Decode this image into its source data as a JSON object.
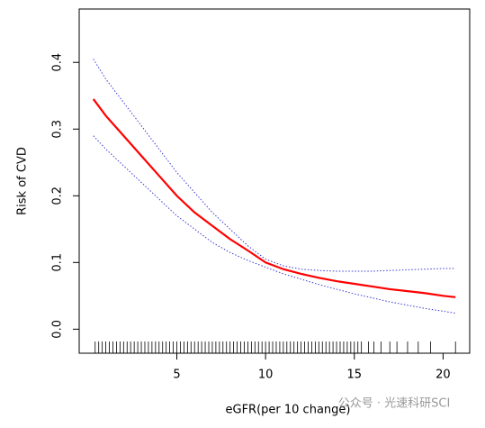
{
  "chart_data": {
    "type": "line",
    "xlabel": "eGFR(per 10 change)",
    "ylabel": "Risk of CVD",
    "x": [
      0.3,
      1,
      2,
      3,
      4,
      5,
      6,
      7,
      8,
      9,
      10,
      11,
      12,
      13,
      14,
      15,
      16,
      17,
      18,
      19,
      20,
      20.7
    ],
    "series": [
      {
        "name": "Risk",
        "color": "#ff0000",
        "style": "solid",
        "values": [
          0.345,
          0.32,
          0.29,
          0.26,
          0.23,
          0.2,
          0.175,
          0.155,
          0.135,
          0.118,
          0.1,
          0.09,
          0.083,
          0.077,
          0.072,
          0.068,
          0.064,
          0.06,
          0.057,
          0.054,
          0.05,
          0.048
        ]
      },
      {
        "name": "Upper",
        "color": "#3b3bd6",
        "style": "dotted",
        "values": [
          0.405,
          0.375,
          0.34,
          0.305,
          0.27,
          0.235,
          0.205,
          0.175,
          0.15,
          0.125,
          0.105,
          0.095,
          0.09,
          0.088,
          0.087,
          0.087,
          0.087,
          0.088,
          0.089,
          0.09,
          0.091,
          0.091
        ]
      },
      {
        "name": "Lower",
        "color": "#3b3bd6",
        "style": "dotted",
        "values": [
          0.29,
          0.27,
          0.245,
          0.22,
          0.195,
          0.17,
          0.15,
          0.13,
          0.115,
          0.103,
          0.093,
          0.083,
          0.075,
          0.067,
          0.06,
          0.053,
          0.047,
          0.041,
          0.036,
          0.031,
          0.027,
          0.024
        ]
      }
    ],
    "rug": [
      0.4,
      0.6,
      0.8,
      1.0,
      1.2,
      1.4,
      1.6,
      1.8,
      2.0,
      2.2,
      2.4,
      2.6,
      2.8,
      3.0,
      3.2,
      3.4,
      3.6,
      3.8,
      4.0,
      4.2,
      4.4,
      4.6,
      4.8,
      5.0,
      5.2,
      5.4,
      5.6,
      5.8,
      6.0,
      6.2,
      6.4,
      6.6,
      6.8,
      7.0,
      7.2,
      7.4,
      7.6,
      7.8,
      8.0,
      8.2,
      8.4,
      8.6,
      8.8,
      9.0,
      9.2,
      9.4,
      9.6,
      9.8,
      10.0,
      10.2,
      10.4,
      10.6,
      10.8,
      11.0,
      11.2,
      11.4,
      11.6,
      11.8,
      12.0,
      12.2,
      12.4,
      12.6,
      12.8,
      13.0,
      13.2,
      13.4,
      13.6,
      13.8,
      14.0,
      14.2,
      14.4,
      14.6,
      14.8,
      15.0,
      15.2,
      15.4,
      15.8,
      16.1,
      16.5,
      17.0,
      17.4,
      18.0,
      18.6,
      19.3,
      20.7
    ],
    "xlim": [
      -0.5,
      21.5
    ],
    "xticks": [
      5,
      10,
      15,
      20
    ],
    "ylim": [
      -0.036,
      0.48
    ],
    "yticks": [
      {
        "value": 0,
        "label": "0.0"
      },
      0.1,
      0.2,
      0.3,
      0.4
    ],
    "watermark": "公众号 · 光速科研SCI"
  }
}
